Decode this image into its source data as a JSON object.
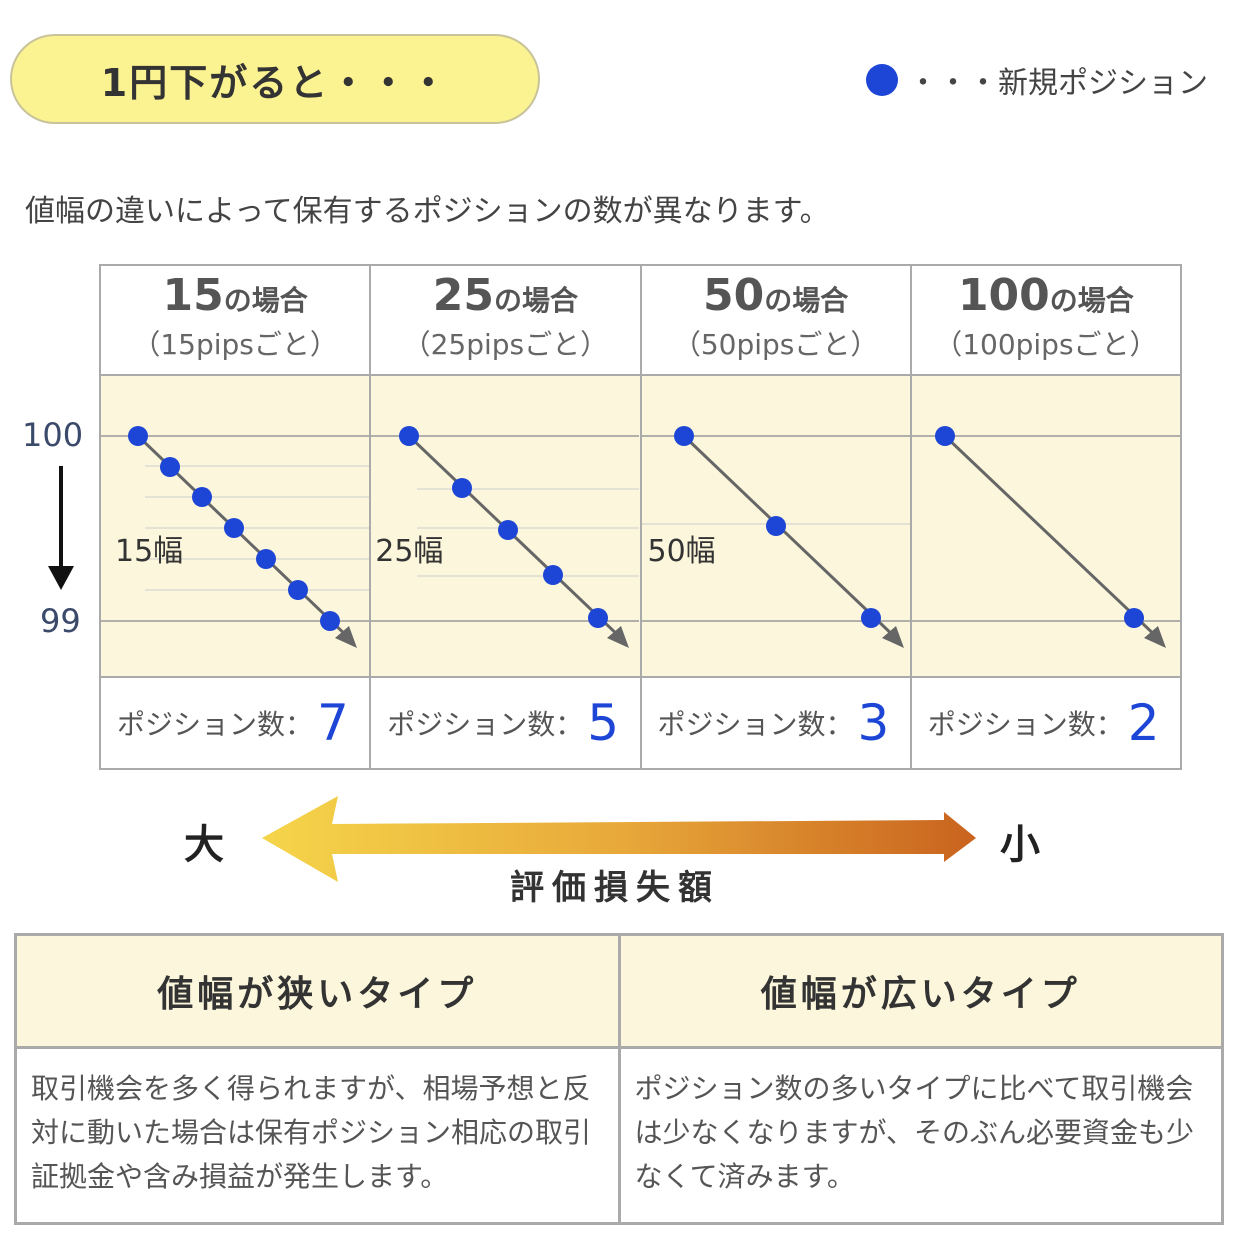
{
  "header": {
    "title": "1円下がると・・・"
  },
  "legend": {
    "label": "・・・新規ポジション",
    "color": "#1e46d6"
  },
  "intro": "値幅の違いによって保有するポジションの数が異なります。",
  "y_axis": {
    "top": "100",
    "bottom": "99"
  },
  "columns": [
    {
      "big": "15",
      "suffix": "の場合",
      "sub": "（15pipsごと）",
      "width_label": "15幅",
      "count_label": "ポジション数：",
      "count": "7"
    },
    {
      "big": "25",
      "suffix": "の場合",
      "sub": "（25pipsごと）",
      "width_label": "25幅",
      "count_label": "ポジション数：",
      "count": "5"
    },
    {
      "big": "50",
      "suffix": "の場合",
      "sub": "（50pipsごと）",
      "width_label": "50幅",
      "count_label": "ポジション数：",
      "count": "3"
    },
    {
      "big": "100",
      "suffix": "の場合",
      "sub": "（100pipsごと）",
      "width_label": "",
      "count_label": "ポジション数：",
      "count": "2"
    }
  ],
  "arrow": {
    "left": "大",
    "right": "小",
    "label": "評価損失額"
  },
  "types": [
    {
      "title": "値幅が狭いタイプ",
      "body": "取引機会を多く得られますが、相場予想と反対に動いた場合は保有ポジション相応の取引証拠金や含み損益が発生します。"
    },
    {
      "title": "値幅が広いタイプ",
      "body": "ポジション数の多いタイプに比べて取引機会は少なくなりますが、そのぶん必要資金も少なくて済みます。"
    }
  ]
}
